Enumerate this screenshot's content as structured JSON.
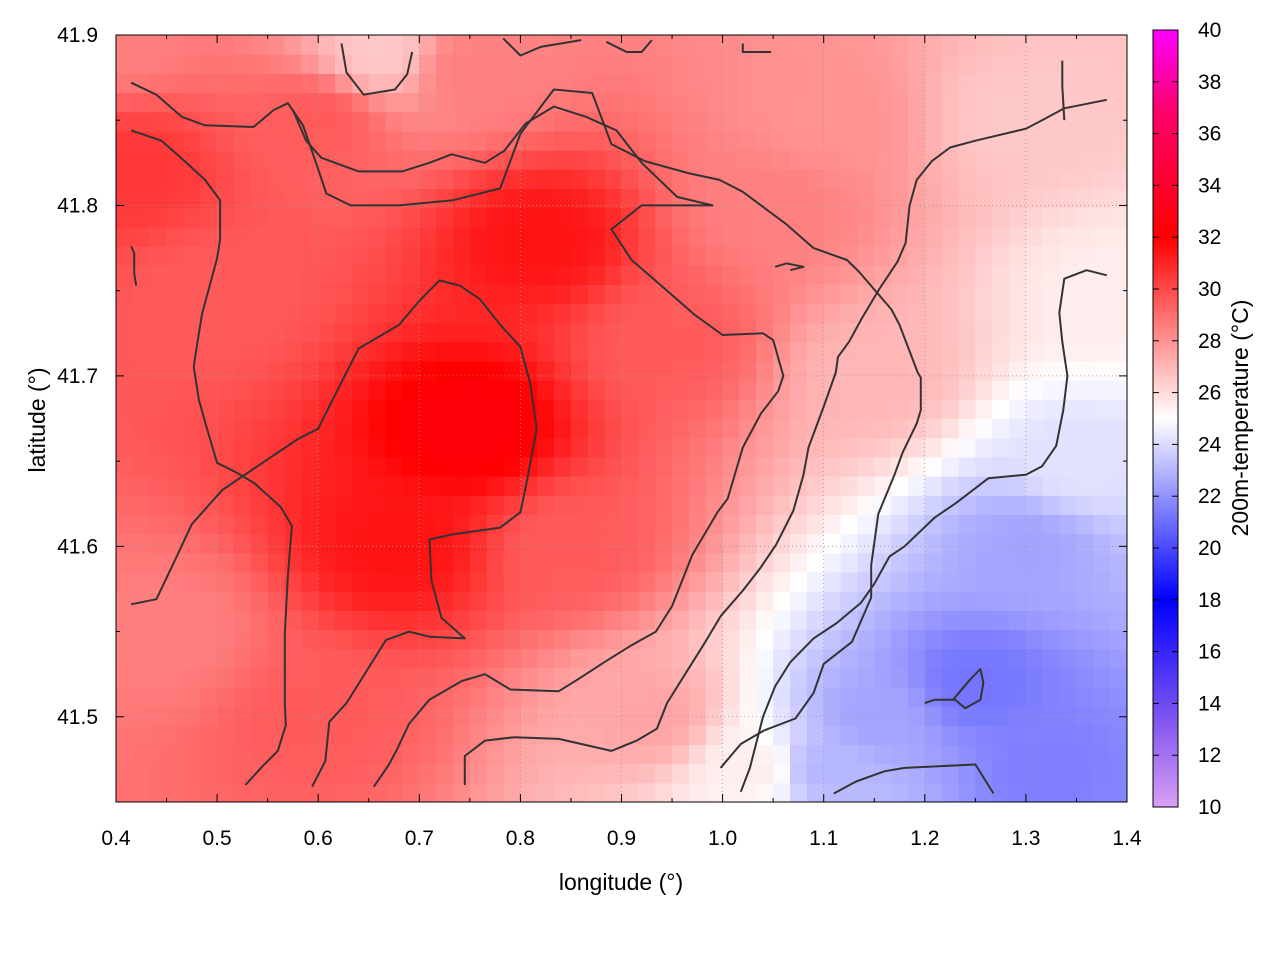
{
  "chart_data": {
    "type": "heatmap",
    "title": "",
    "xlabel": "longitude (°)",
    "ylabel": "latitude (°)",
    "colorbar_label": "200m-temperature (°C)",
    "xlim": [
      0.4,
      1.4
    ],
    "ylim": [
      41.45,
      41.9
    ],
    "x_ticks": [
      "0.4",
      "0.5",
      "0.6",
      "0.7",
      "0.8",
      "0.9",
      "1.0",
      "1.1",
      "1.2",
      "1.3",
      "1.4"
    ],
    "y_ticks": [
      "41.5",
      "41.6",
      "41.7",
      "41.8",
      "41.9"
    ],
    "colorbar_range": [
      10,
      40
    ],
    "colorbar_ticks": [
      "10",
      "12",
      "14",
      "16",
      "18",
      "20",
      "22",
      "24",
      "26",
      "28",
      "30",
      "32",
      "34",
      "36",
      "38",
      "40"
    ],
    "grid": "dotted",
    "contour_interval": 2,
    "colormap": [
      {
        "t": 10,
        "color": "#d9a0f5"
      },
      {
        "t": 13,
        "color": "#8a5cf0"
      },
      {
        "t": 18,
        "color": "#0000ff"
      },
      {
        "t": 25,
        "color": "#ffffff"
      },
      {
        "t": 32,
        "color": "#ff0000"
      },
      {
        "t": 37,
        "color": "#ff0070"
      },
      {
        "t": 40,
        "color": "#ff00ff"
      }
    ],
    "field_anchors": [
      {
        "x": 0.5,
        "y": 41.75,
        "v": 29.5
      },
      {
        "x": 0.42,
        "y": 41.82,
        "v": 30.5
      },
      {
        "x": 0.45,
        "y": 41.55,
        "v": 28.5
      },
      {
        "x": 0.6,
        "y": 41.85,
        "v": 29.5
      },
      {
        "x": 0.82,
        "y": 41.78,
        "v": 31.5
      },
      {
        "x": 0.75,
        "y": 41.67,
        "v": 32.5
      },
      {
        "x": 0.68,
        "y": 41.6,
        "v": 31.5
      },
      {
        "x": 0.6,
        "y": 41.5,
        "v": 29.5
      },
      {
        "x": 0.85,
        "y": 41.6,
        "v": 29.5
      },
      {
        "x": 0.95,
        "y": 41.72,
        "v": 29.5
      },
      {
        "x": 1.05,
        "y": 41.8,
        "v": 28.5
      },
      {
        "x": 0.93,
        "y": 41.5,
        "v": 27.5
      },
      {
        "x": 1.1,
        "y": 41.85,
        "v": 28
      },
      {
        "x": 1.15,
        "y": 41.7,
        "v": 27
      },
      {
        "x": 1.3,
        "y": 41.85,
        "v": 26.5
      },
      {
        "x": 1.38,
        "y": 41.75,
        "v": 25.5
      },
      {
        "x": 1.35,
        "y": 41.65,
        "v": 24.2
      },
      {
        "x": 1.3,
        "y": 41.6,
        "v": 22.5
      },
      {
        "x": 1.25,
        "y": 41.52,
        "v": 21.2
      },
      {
        "x": 1.15,
        "y": 41.5,
        "v": 22.5
      },
      {
        "x": 1.1,
        "y": 41.47,
        "v": 23
      },
      {
        "x": 1.32,
        "y": 41.47,
        "v": 21.5
      },
      {
        "x": 1.03,
        "y": 41.47,
        "v": 25.5
      },
      {
        "x": 0.4,
        "y": 41.9,
        "v": 28.5
      },
      {
        "x": 0.66,
        "y": 41.89,
        "v": 26.5
      },
      {
        "x": 0.75,
        "y": 41.88,
        "v": 28.5
      }
    ],
    "contours": [
      {
        "level": 30,
        "points": [
          [
            0.415,
            41.872
          ],
          [
            0.44,
            41.865
          ],
          [
            0.465,
            41.852
          ],
          [
            0.488,
            41.847
          ],
          [
            0.536,
            41.846
          ],
          [
            0.556,
            41.856
          ],
          [
            0.57,
            41.86
          ],
          [
            0.585,
            41.847
          ],
          [
            0.599,
            41.823
          ],
          [
            0.608,
            41.807
          ],
          [
            0.632,
            41.8
          ],
          [
            0.68,
            41.8
          ],
          [
            0.733,
            41.803
          ],
          [
            0.78,
            41.81
          ],
          [
            0.8,
            41.842
          ],
          [
            0.833,
            41.868
          ],
          [
            0.871,
            41.866
          ],
          [
            0.89,
            41.836
          ],
          [
            0.923,
            41.826
          ],
          [
            0.966,
            41.819
          ],
          [
            0.997,
            41.815
          ],
          [
            1.02,
            41.808
          ],
          [
            1.063,
            41.789
          ],
          [
            1.09,
            41.775
          ],
          [
            1.123,
            41.768
          ],
          [
            1.135,
            41.761
          ],
          [
            1.167,
            41.739
          ],
          [
            1.175,
            41.73
          ],
          [
            1.193,
            41.702
          ],
          [
            1.196,
            41.699
          ],
          [
            1.196,
            41.68
          ],
          [
            1.192,
            41.672
          ],
          [
            1.178,
            41.655
          ],
          [
            1.17,
            41.642
          ],
          [
            1.154,
            41.619
          ],
          [
            1.147,
            41.589
          ],
          [
            1.147,
            41.57
          ],
          [
            1.128,
            41.544
          ],
          [
            1.1,
            41.531
          ],
          [
            1.09,
            41.514
          ],
          [
            1.072,
            41.499
          ],
          [
            1.041,
            41.492
          ],
          [
            1.018,
            41.484
          ],
          [
            0.998,
            41.47
          ]
        ]
      },
      {
        "level": 30,
        "points": [
          [
            0.415,
            41.844
          ],
          [
            0.445,
            41.838
          ],
          [
            0.468,
            41.826
          ],
          [
            0.488,
            41.815
          ],
          [
            0.503,
            41.803
          ],
          [
            0.503,
            41.78
          ],
          [
            0.5,
            41.769
          ],
          [
            0.485,
            41.736
          ],
          [
            0.478,
            41.71
          ],
          [
            0.477,
            41.705
          ],
          [
            0.482,
            41.686
          ],
          [
            0.489,
            41.671
          ],
          [
            0.5,
            41.649
          ],
          [
            0.52,
            41.643
          ],
          [
            0.537,
            41.637
          ],
          [
            0.563,
            41.623
          ],
          [
            0.574,
            41.612
          ],
          [
            0.57,
            41.583
          ],
          [
            0.567,
            41.549
          ],
          [
            0.567,
            41.509
          ],
          [
            0.568,
            41.495
          ],
          [
            0.56,
            41.48
          ],
          [
            0.545,
            41.471
          ],
          [
            0.528,
            41.46
          ]
        ]
      },
      {
        "level": 32,
        "points": [
          [
            0.415,
            41.566
          ],
          [
            0.44,
            41.569
          ],
          [
            0.46,
            41.594
          ],
          [
            0.475,
            41.613
          ],
          [
            0.505,
            41.633
          ],
          [
            0.54,
            41.647
          ],
          [
            0.58,
            41.663
          ],
          [
            0.6,
            41.669
          ],
          [
            0.61,
            41.681
          ],
          [
            0.64,
            41.716
          ],
          [
            0.68,
            41.73
          ],
          [
            0.7,
            41.744
          ],
          [
            0.72,
            41.756
          ],
          [
            0.74,
            41.753
          ],
          [
            0.76,
            41.745
          ],
          [
            0.78,
            41.73
          ],
          [
            0.8,
            41.717
          ],
          [
            0.81,
            41.695
          ],
          [
            0.816,
            41.669
          ],
          [
            0.807,
            41.64
          ],
          [
            0.8,
            41.62
          ],
          [
            0.78,
            41.611
          ],
          [
            0.733,
            41.607
          ],
          [
            0.71,
            41.604
          ],
          [
            0.712,
            41.58
          ],
          [
            0.722,
            41.558
          ],
          [
            0.745,
            41.546
          ],
          [
            0.71,
            41.547
          ],
          [
            0.69,
            41.55
          ],
          [
            0.667,
            41.545
          ],
          [
            0.648,
            41.527
          ],
          [
            0.628,
            41.508
          ],
          [
            0.611,
            41.497
          ],
          [
            0.607,
            41.474
          ],
          [
            0.594,
            41.459
          ]
        ]
      },
      {
        "level": 28,
        "points": [
          [
            0.655,
            41.459
          ],
          [
            0.67,
            41.472
          ],
          [
            0.678,
            41.481
          ],
          [
            0.69,
            41.496
          ],
          [
            0.71,
            41.51
          ],
          [
            0.742,
            41.521
          ],
          [
            0.765,
            41.525
          ],
          [
            0.79,
            41.516
          ],
          [
            0.838,
            41.515
          ],
          [
            0.857,
            41.522
          ],
          [
            0.883,
            41.532
          ],
          [
            0.91,
            41.542
          ],
          [
            0.934,
            41.55
          ],
          [
            0.95,
            41.565
          ],
          [
            0.97,
            41.595
          ],
          [
            0.995,
            41.62
          ],
          [
            1.005,
            41.628
          ],
          [
            1.02,
            41.658
          ],
          [
            1.038,
            41.678
          ],
          [
            1.055,
            41.691
          ],
          [
            1.06,
            41.7
          ],
          [
            1.05,
            41.721
          ],
          [
            1.04,
            41.725
          ],
          [
            1.0,
            41.724
          ],
          [
            0.972,
            41.736
          ],
          [
            0.947,
            41.749
          ],
          [
            0.91,
            41.768
          ],
          [
            0.89,
            41.786
          ],
          [
            0.92,
            41.8
          ],
          [
            0.99,
            41.8
          ],
          [
            0.955,
            41.805
          ],
          [
            0.92,
            41.825
          ],
          [
            0.895,
            41.844
          ],
          [
            0.865,
            41.852
          ],
          [
            0.833,
            41.858
          ],
          [
            0.805,
            41.848
          ],
          [
            0.784,
            41.832
          ],
          [
            0.765,
            41.825
          ],
          [
            0.732,
            41.83
          ],
          [
            0.71,
            41.825
          ],
          [
            0.683,
            41.82
          ],
          [
            0.64,
            41.82
          ],
          [
            0.603,
            41.828
          ],
          [
            0.588,
            41.838
          ],
          [
            0.575,
            41.856
          ]
        ]
      },
      {
        "level": 26,
        "points": [
          [
            0.745,
            41.46
          ],
          [
            0.745,
            41.477
          ],
          [
            0.765,
            41.486
          ],
          [
            0.794,
            41.488
          ],
          [
            0.838,
            41.487
          ],
          [
            0.89,
            41.48
          ],
          [
            0.915,
            41.486
          ],
          [
            0.935,
            41.493
          ],
          [
            0.945,
            41.508
          ],
          [
            0.965,
            41.527
          ],
          [
            0.983,
            41.544
          ],
          [
            0.998,
            41.559
          ],
          [
            1.02,
            41.574
          ],
          [
            1.037,
            41.587
          ],
          [
            1.053,
            41.601
          ],
          [
            1.07,
            41.621
          ],
          [
            1.08,
            41.642
          ],
          [
            1.085,
            41.658
          ],
          [
            1.1,
            41.682
          ],
          [
            1.112,
            41.702
          ],
          [
            1.114,
            41.711
          ],
          [
            1.125,
            41.72
          ],
          [
            1.138,
            41.734
          ],
          [
            1.155,
            41.751
          ],
          [
            1.173,
            41.767
          ],
          [
            1.181,
            41.778
          ],
          [
            1.185,
            41.8
          ],
          [
            1.192,
            41.815
          ],
          [
            1.207,
            41.826
          ],
          [
            1.225,
            41.834
          ],
          [
            1.25,
            41.838
          ],
          [
            1.3,
            41.845
          ],
          [
            1.316,
            41.85
          ],
          [
            1.338,
            41.857
          ],
          [
            1.38,
            41.862
          ]
        ]
      },
      {
        "level": 24,
        "points": [
          [
            1.018,
            41.456
          ],
          [
            1.027,
            41.47
          ],
          [
            1.04,
            41.5
          ],
          [
            1.052,
            41.518
          ],
          [
            1.067,
            41.532
          ],
          [
            1.09,
            41.546
          ],
          [
            1.113,
            41.555
          ],
          [
            1.137,
            41.567
          ],
          [
            1.15,
            41.578
          ],
          [
            1.165,
            41.594
          ],
          [
            1.18,
            41.6
          ],
          [
            1.21,
            41.617
          ],
          [
            1.23,
            41.625
          ],
          [
            1.263,
            41.64
          ],
          [
            1.3,
            41.642
          ],
          [
            1.316,
            41.647
          ],
          [
            1.33,
            41.659
          ],
          [
            1.337,
            41.68
          ],
          [
            1.341,
            41.7
          ],
          [
            1.336,
            41.72
          ],
          [
            1.333,
            41.737
          ],
          [
            1.338,
            41.757
          ],
          [
            1.36,
            41.762
          ],
          [
            1.38,
            41.759
          ]
        ]
      },
      {
        "level": 22,
        "points": [
          [
            1.2,
            41.508
          ],
          [
            1.21,
            41.51
          ],
          [
            1.23,
            41.51
          ],
          [
            1.24,
            41.505
          ],
          [
            1.255,
            41.51
          ],
          [
            1.258,
            41.52
          ],
          [
            1.255,
            41.528
          ],
          [
            1.245,
            41.522
          ],
          [
            1.228,
            41.51
          ]
        ]
      },
      {
        "level": 22,
        "points": [
          [
            1.11,
            41.455
          ],
          [
            1.132,
            41.462
          ],
          [
            1.16,
            41.468
          ],
          [
            1.18,
            41.47
          ],
          [
            1.25,
            41.472
          ],
          [
            1.268,
            41.455
          ]
        ]
      },
      {
        "level": 26,
        "points": [
          [
            1.338,
            41.85
          ],
          [
            1.336,
            41.87
          ],
          [
            1.336,
            41.885
          ]
        ]
      },
      {
        "level": 28,
        "points": [
          [
            0.42,
            41.753
          ],
          [
            0.418,
            41.76
          ],
          [
            0.418,
            41.772
          ],
          [
            0.415,
            41.776
          ]
        ]
      },
      {
        "level": 28,
        "points": [
          [
            1.052,
            41.764
          ],
          [
            1.063,
            41.766
          ],
          [
            1.08,
            41.764
          ],
          [
            1.067,
            41.762
          ]
        ]
      },
      {
        "level": 26,
        "points": [
          [
            0.623,
            41.895
          ],
          [
            0.628,
            41.878
          ],
          [
            0.645,
            41.865
          ],
          [
            0.676,
            41.868
          ],
          [
            0.688,
            41.877
          ],
          [
            0.693,
            41.89
          ]
        ]
      },
      {
        "level": 26,
        "points": [
          [
            0.783,
            41.898
          ],
          [
            0.8,
            41.888
          ],
          [
            0.82,
            41.893
          ],
          [
            0.86,
            41.897
          ]
        ]
      },
      {
        "level": 26,
        "points": [
          [
            0.885,
            41.896
          ],
          [
            0.905,
            41.89
          ],
          [
            0.92,
            41.89
          ],
          [
            0.93,
            41.897
          ]
        ]
      },
      {
        "level": 26,
        "points": [
          [
            1.02,
            41.895
          ],
          [
            1.02,
            41.89
          ],
          [
            1.04,
            41.89
          ],
          [
            1.048,
            41.89
          ]
        ]
      }
    ]
  }
}
